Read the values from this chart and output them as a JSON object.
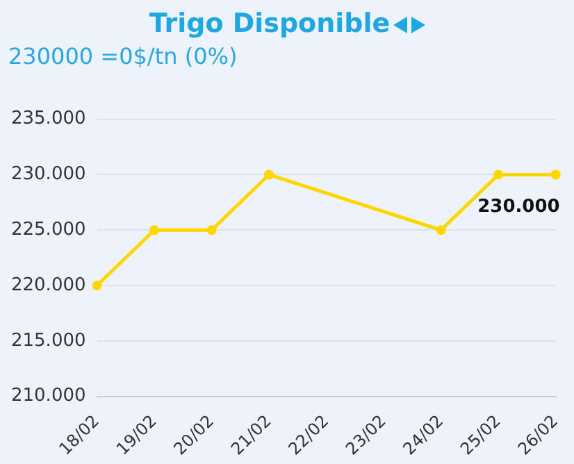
{
  "chart_data": {
    "type": "line",
    "title": "Trigo Disponible",
    "subtitle": "230000 =0$/tn (0%)",
    "categories": [
      "18/02",
      "19/02",
      "20/02",
      "21/02",
      "22/02",
      "23/02",
      "24/02",
      "25/02",
      "26/02"
    ],
    "series": [
      {
        "color": "#ffd700",
        "values": [
          220000,
          225000,
          225000,
          230000,
          null,
          null,
          225000,
          230000,
          230000
        ],
        "value_labels": [
          null,
          null,
          null,
          null,
          null,
          null,
          null,
          null,
          "230.000"
        ]
      }
    ],
    "ylim": [
      210000,
      235000
    ],
    "yticks": [
      {
        "value": 210000,
        "label": "210.000"
      },
      {
        "value": 215000,
        "label": "215.000"
      },
      {
        "value": 220000,
        "label": "220.000"
      },
      {
        "value": 225000,
        "label": "225.000"
      },
      {
        "value": 230000,
        "label": "230.000"
      },
      {
        "value": 235000,
        "label": "235.000"
      }
    ],
    "grid": "y",
    "legend": false,
    "marker": "circle",
    "line_style": "solid"
  }
}
